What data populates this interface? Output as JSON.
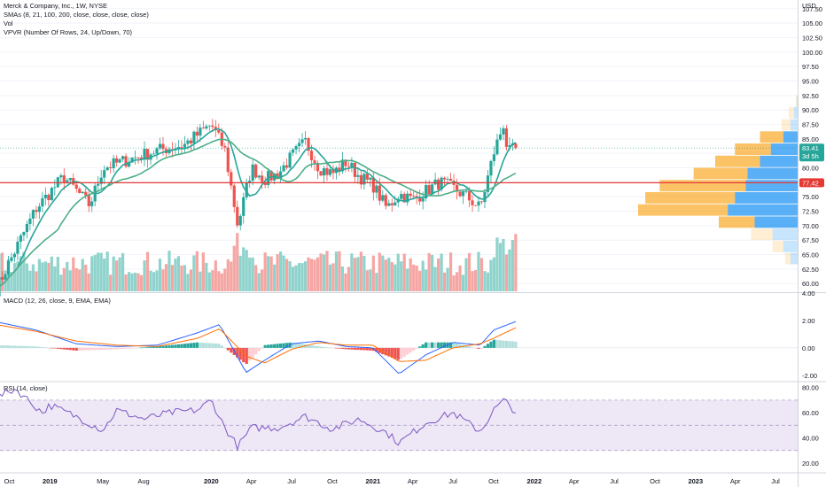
{
  "legend": {
    "title": "Merck & Company, Inc., 1W, NYSE",
    "sma": "SMAs (8, 21, 100, 200, close, close, close, close)",
    "vol": "Vol",
    "vpvr": "VPVR (Number Of Rows, 24, Up/Down, 70)",
    "macd": "MACD (12, 26, close, 9, EMA, EMA)",
    "rsi": "RSI (14, close)"
  },
  "price_axis": {
    "currency": "USD",
    "ticks": [
      "107.50",
      "105.00",
      "102.50",
      "100.00",
      "97.50",
      "95.00",
      "92.50",
      "90.00",
      "87.50",
      "85.00",
      "82.50",
      "80.00",
      "77.50",
      "75.00",
      "72.50",
      "70.00",
      "67.50",
      "65.00",
      "62.50",
      "60.00"
    ],
    "last_price": "83.41",
    "countdown": "3d 5h",
    "level_label": "77.42"
  },
  "macd_axis": {
    "ticks": [
      "4.00",
      "2.00",
      "0.00",
      "-2.00"
    ]
  },
  "rsi_axis": {
    "ticks": [
      "80.00",
      "60.00",
      "40.00",
      "20.00"
    ]
  },
  "time_axis": {
    "ticks": [
      "Oct",
      "2019",
      "May",
      "Aug",
      "2020",
      "Apr",
      "Jul",
      "Oct",
      "2021",
      "Apr",
      "Jul",
      "Oct",
      "2022",
      "Apr",
      "Jul",
      "Oct",
      "2023",
      "Apr",
      "Jul"
    ]
  },
  "colors": {
    "up": "#26a69a",
    "down": "#ef5350",
    "up_vol": "#8fd3cc",
    "down_vol": "#f5a6a3",
    "sma8": "#26a69a",
    "sma21": "#4caf87",
    "level_line": "#e53935",
    "macd_line": "#2962ff",
    "signal_line": "#ff6d00",
    "rsi_line": "#7e57c2",
    "rsi_band": "#ede7f6",
    "vpvr_up": "#2196f3",
    "vpvr_down": "#f9a825",
    "price_badge": "#26a69a",
    "level_badge": "#e53935"
  },
  "chart_data": [
    {
      "type": "candlestick",
      "title": "Merck & Company, Inc., 1W, NYSE",
      "ylim": [
        58.5,
        109
      ],
      "x_range": [
        "2018-09",
        "2023-08"
      ],
      "anchors": [
        {
          "date": "2018-09",
          "close": 59.0
        },
        {
          "date": "2018-11",
          "close": 68.5
        },
        {
          "date": "2018-12",
          "close": 73.0
        },
        {
          "date": "2019-02",
          "close": 78.5
        },
        {
          "date": "2019-04",
          "close": 73.5
        },
        {
          "date": "2019-05",
          "close": 80.0
        },
        {
          "date": "2019-07",
          "close": 81.5
        },
        {
          "date": "2019-09",
          "close": 83.0
        },
        {
          "date": "2019-11",
          "close": 84.0
        },
        {
          "date": "2020-01",
          "close": 87.5
        },
        {
          "date": "2020-02",
          "close": 83.0
        },
        {
          "date": "2020-03",
          "close": 70.0
        },
        {
          "date": "2020-04",
          "close": 80.0
        },
        {
          "date": "2020-05",
          "close": 78.0
        },
        {
          "date": "2020-06",
          "close": 79.0
        },
        {
          "date": "2020-07",
          "close": 82.0
        },
        {
          "date": "2020-08",
          "close": 84.5
        },
        {
          "date": "2020-09",
          "close": 80.0
        },
        {
          "date": "2020-10",
          "close": 79.0
        },
        {
          "date": "2020-11",
          "close": 81.0
        },
        {
          "date": "2020-12",
          "close": 78.5
        },
        {
          "date": "2021-01",
          "close": 77.0
        },
        {
          "date": "2021-02",
          "close": 73.0
        },
        {
          "date": "2021-03",
          "close": 75.5
        },
        {
          "date": "2021-04",
          "close": 74.5
        },
        {
          "date": "2021-05",
          "close": 76.0
        },
        {
          "date": "2021-06",
          "close": 77.5
        },
        {
          "date": "2021-07",
          "close": 76.5
        },
        {
          "date": "2021-08",
          "close": 75.0
        },
        {
          "date": "2021-09",
          "close": 73.0
        },
        {
          "date": "2021-10",
          "close": 82.5
        },
        {
          "date": "2021-10-25",
          "close": 88.0
        },
        {
          "date": "2021-11",
          "close": 82.5
        },
        {
          "date": "2021-11-22",
          "close": 83.41
        }
      ],
      "horizontal_level": 77.42,
      "last_price": 83.41
    },
    {
      "type": "bar",
      "name": "MACD histogram",
      "ylim": [
        -2.4,
        4.0
      ],
      "x_range": [
        "2018-09",
        "2021-11"
      ],
      "anchors": [
        {
          "date": "2018-09",
          "macd": 1.9,
          "signal": 1.7
        },
        {
          "date": "2018-12",
          "macd": 1.3,
          "signal": 1.2
        },
        {
          "date": "2019-03",
          "macd": 0.3,
          "signal": 0.5
        },
        {
          "date": "2019-06",
          "macd": 0.1,
          "signal": 0.2
        },
        {
          "date": "2019-09",
          "macd": 0.2,
          "signal": 0.1
        },
        {
          "date": "2019-12",
          "macd": 1.1,
          "signal": 0.7
        },
        {
          "date": "2020-01-20",
          "macd": 1.7,
          "signal": 1.4
        },
        {
          "date": "2020-03-20",
          "macd": -1.8,
          "signal": -0.6
        },
        {
          "date": "2020-05",
          "macd": -0.9,
          "signal": -1.1
        },
        {
          "date": "2020-07",
          "macd": 0.3,
          "signal": -0.1
        },
        {
          "date": "2020-09",
          "macd": 0.5,
          "signal": 0.4
        },
        {
          "date": "2020-11",
          "macd": 0.1,
          "signal": 0.2
        },
        {
          "date": "2021-01",
          "macd": 0.0,
          "signal": 0.2
        },
        {
          "date": "2021-03",
          "macd": -1.9,
          "signal": -1.0
        },
        {
          "date": "2021-05",
          "macd": -0.5,
          "signal": -0.9
        },
        {
          "date": "2021-07",
          "macd": 0.4,
          "signal": 0.0
        },
        {
          "date": "2021-09",
          "macd": 0.2,
          "signal": 0.3
        },
        {
          "date": "2021-10",
          "macd": 1.3,
          "signal": 0.7
        },
        {
          "date": "2021-11-22",
          "macd": 1.95,
          "signal": 1.5
        }
      ]
    },
    {
      "type": "line",
      "name": "RSI",
      "ylim": [
        15,
        84
      ],
      "bands": [
        30,
        50,
        70
      ],
      "anchors": [
        {
          "date": "2018-09",
          "rsi": 72
        },
        {
          "date": "2018-10-15",
          "rsi": 79
        },
        {
          "date": "2018-12-15",
          "rsi": 60
        },
        {
          "date": "2019-01",
          "rsi": 66
        },
        {
          "date": "2019-03",
          "rsi": 57
        },
        {
          "date": "2019-05",
          "rsi": 46
        },
        {
          "date": "2019-06",
          "rsi": 62
        },
        {
          "date": "2019-08",
          "rsi": 55
        },
        {
          "date": "2019-10",
          "rsi": 60
        },
        {
          "date": "2019-12",
          "rsi": 62
        },
        {
          "date": "2020-01",
          "rsi": 70
        },
        {
          "date": "2020-02",
          "rsi": 48
        },
        {
          "date": "2020-03",
          "rsi": 33
        },
        {
          "date": "2020-04",
          "rsi": 48
        },
        {
          "date": "2020-06",
          "rsi": 48
        },
        {
          "date": "2020-08",
          "rsi": 57
        },
        {
          "date": "2020-10",
          "rsi": 47
        },
        {
          "date": "2020-12",
          "rsi": 55
        },
        {
          "date": "2021-02",
          "rsi": 44
        },
        {
          "date": "2021-03",
          "rsi": 36
        },
        {
          "date": "2021-05",
          "rsi": 52
        },
        {
          "date": "2021-07",
          "rsi": 60
        },
        {
          "date": "2021-09",
          "rsi": 45
        },
        {
          "date": "2021-10",
          "rsi": 62
        },
        {
          "date": "2021-10-25",
          "rsi": 70
        },
        {
          "date": "2021-11-22",
          "rsi": 60
        }
      ]
    },
    {
      "type": "bar",
      "name": "VPVR",
      "orientation": "horizontal",
      "rows": [
        {
          "price": 91.5,
          "up": 1,
          "down": 1
        },
        {
          "price": 89.5,
          "up": 4,
          "down": 6
        },
        {
          "price": 87.4,
          "up": 8,
          "down": 10
        },
        {
          "price": 85.3,
          "up": 16,
          "down": 26
        },
        {
          "price": 83.2,
          "up": 30,
          "down": 40
        },
        {
          "price": 81.1,
          "up": 42,
          "down": 50
        },
        {
          "price": 79.0,
          "up": 56,
          "down": 60
        },
        {
          "price": 76.9,
          "up": 58,
          "down": 96
        },
        {
          "price": 74.8,
          "up": 70,
          "down": 100
        },
        {
          "price": 72.7,
          "up": 78,
          "down": 100
        },
        {
          "price": 70.6,
          "up": 48,
          "down": 40
        },
        {
          "price": 68.5,
          "up": 28,
          "down": 24
        },
        {
          "price": 66.4,
          "up": 16,
          "down": 12
        },
        {
          "price": 64.3,
          "up": 8,
          "down": 6
        }
      ]
    }
  ]
}
